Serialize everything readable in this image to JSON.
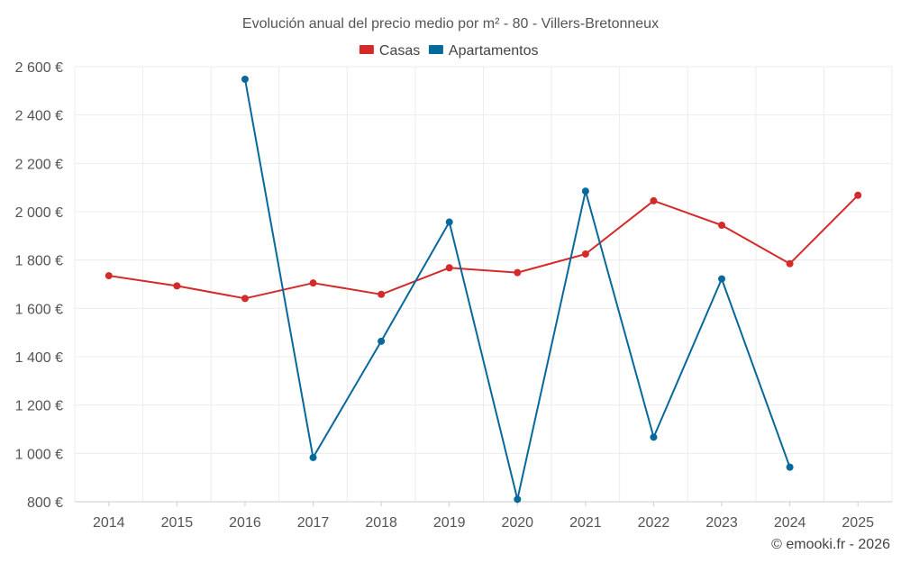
{
  "chart_data": {
    "type": "line",
    "title": "Evolución anual del precio medio por m² - 80 - Villers-Bretonneux",
    "categories": [
      "2014",
      "2015",
      "2016",
      "2017",
      "2018",
      "2019",
      "2020",
      "2021",
      "2022",
      "2023",
      "2024",
      "2025"
    ],
    "ylim": [
      800,
      2600
    ],
    "yticks": [
      800,
      1000,
      1200,
      1400,
      1600,
      1800,
      2000,
      2200,
      2400,
      2600
    ],
    "ytick_labels": [
      "800 €",
      "1 000 €",
      "1 200 €",
      "1 400 €",
      "1 600 €",
      "1 800 €",
      "2 000 €",
      "2 200 €",
      "2 400 €",
      "2 600 €"
    ],
    "legend_position": "top-center",
    "grid": true,
    "series": [
      {
        "name": "Casas",
        "color": "#d42a2a",
        "values": [
          1735,
          1693,
          1641,
          1705,
          1658,
          1768,
          1748,
          1825,
          2045,
          1944,
          1785,
          2068
        ]
      },
      {
        "name": "Apartamentos",
        "color": "#07689c",
        "values": [
          null,
          null,
          2548,
          983,
          1464,
          1957,
          810,
          2085,
          1067,
          1722,
          943,
          null
        ]
      }
    ]
  },
  "footer": {
    "credit": "© emooki.fr - 2026"
  }
}
